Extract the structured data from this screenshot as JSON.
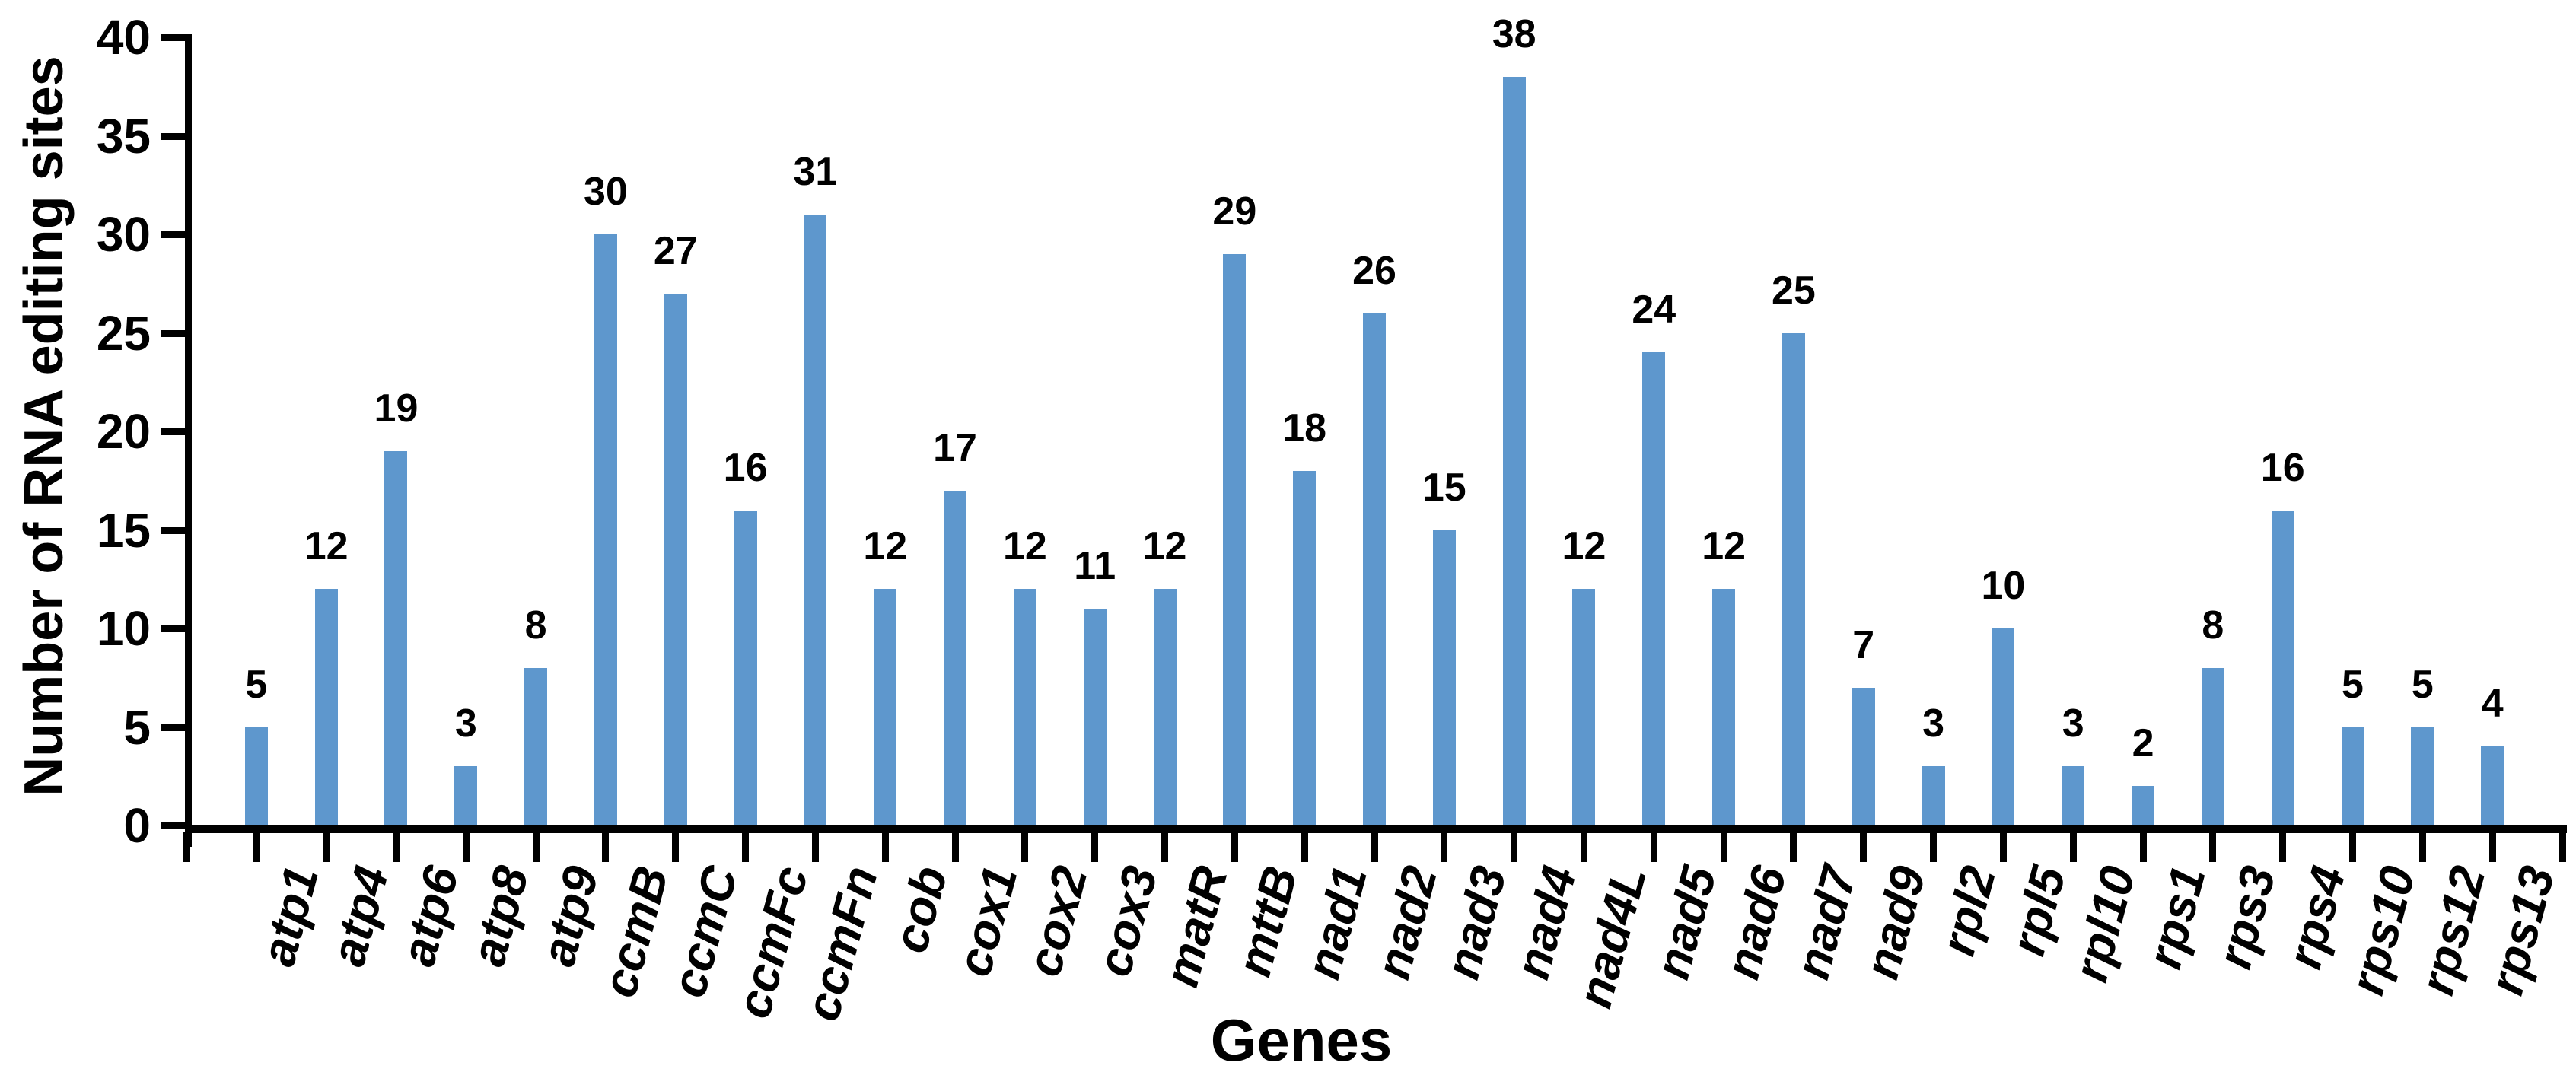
{
  "chart_data": {
    "type": "bar",
    "title": "",
    "xlabel": "Genes",
    "ylabel": "Number of RNA editing sites",
    "categories": [
      "atp1",
      "atp4",
      "atp6",
      "atp8",
      "atp9",
      "ccmB",
      "ccmC",
      "ccmFc",
      "ccmFn",
      "cob",
      "cox1",
      "cox2",
      "cox3",
      "matR",
      "mttB",
      "nad1",
      "nad2",
      "nad3",
      "nad4",
      "nad4L",
      "nad5",
      "nad6",
      "nad7",
      "nad9",
      "rpl2",
      "rpl5",
      "rpl10",
      "rps1",
      "rps3",
      "rps4",
      "rps10",
      "rps12",
      "rps13"
    ],
    "values": [
      5,
      12,
      19,
      3,
      8,
      30,
      27,
      16,
      31,
      12,
      17,
      12,
      11,
      12,
      29,
      18,
      26,
      15,
      38,
      12,
      24,
      12,
      25,
      7,
      3,
      10,
      3,
      2,
      8,
      16,
      5,
      5,
      4
    ],
    "ylim": [
      0,
      40
    ],
    "yticks": [
      0,
      5,
      10,
      15,
      20,
      25,
      30,
      35,
      40
    ],
    "data_labels": true,
    "grid": false,
    "legend": false,
    "bar_color": "#5E97CD",
    "axis_color": "#000000",
    "text_color": "#000000",
    "background_color": "#ffffff",
    "category_style": "bold italic, rotated",
    "bar_count": 33
  }
}
